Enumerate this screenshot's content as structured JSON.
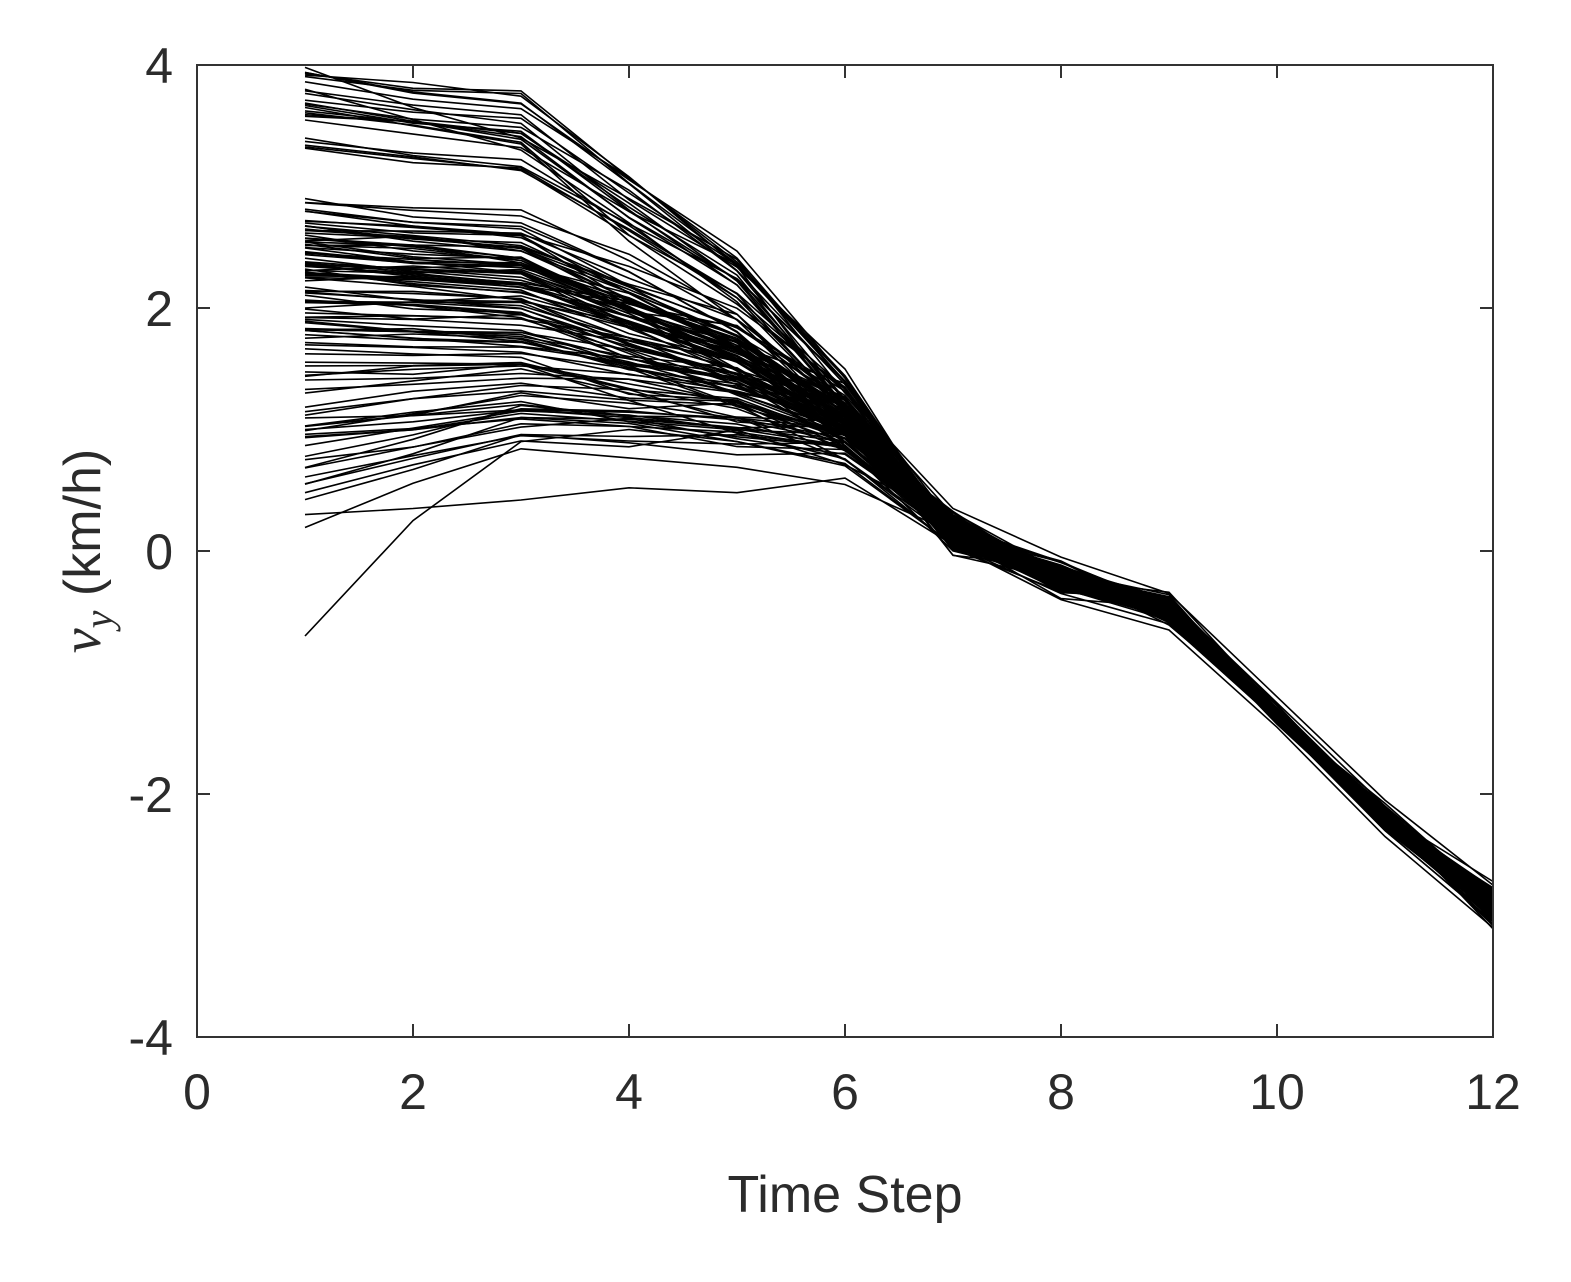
{
  "chart_data": {
    "type": "line",
    "xlabel": "Time Step",
    "ylabel_symbol": "v",
    "ylabel_subscript": "y",
    "ylabel_unit": " (km/h)",
    "xlim": [
      0,
      12
    ],
    "ylim": [
      -4,
      4
    ],
    "xticks": [
      0,
      2,
      4,
      6,
      8,
      10,
      12
    ],
    "yticks": [
      -4,
      -2,
      0,
      2,
      4
    ],
    "grid": false,
    "line_color": "#000000",
    "axis_color": "#333333",
    "x": [
      1,
      2,
      3,
      4,
      5,
      6,
      7,
      8,
      9,
      10,
      11,
      12
    ],
    "series_note_count": 140,
    "sample_series": [
      [
        3.98,
        3.65,
        3.4,
        2.9,
        2.4,
        1.3,
        0.35,
        -0.05,
        -0.35,
        -1.2,
        -2.05,
        -2.75
      ],
      [
        3.8,
        3.55,
        3.3,
        2.7,
        2.05,
        1.15,
        0.25,
        -0.15,
        -0.4,
        -1.25,
        -2.1,
        -2.85
      ],
      [
        3.65,
        3.5,
        3.35,
        2.55,
        1.9,
        1.05,
        0.2,
        -0.2,
        -0.45,
        -1.3,
        -2.15,
        -2.9
      ],
      [
        2.9,
        2.75,
        2.7,
        2.3,
        1.8,
        0.95,
        0.15,
        -0.2,
        -0.45,
        -1.3,
        -2.2,
        -2.95
      ],
      [
        2.45,
        2.4,
        2.35,
        2.0,
        1.6,
        0.9,
        0.15,
        -0.25,
        -0.5,
        -1.35,
        -2.2,
        -2.95
      ],
      [
        2.0,
        2.05,
        2.1,
        1.85,
        1.45,
        0.85,
        0.1,
        -0.25,
        -0.5,
        -1.35,
        -2.25,
        -3.0
      ],
      [
        1.3,
        1.4,
        1.5,
        1.3,
        1.1,
        0.75,
        0.1,
        -0.3,
        -0.55,
        -1.4,
        -2.25,
        -3.0
      ],
      [
        0.55,
        0.8,
        1.1,
        1.05,
        0.9,
        0.7,
        0.05,
        -0.3,
        -0.55,
        -1.4,
        -2.3,
        -3.05
      ],
      [
        0.3,
        0.35,
        0.42,
        0.52,
        0.48,
        0.6,
        0.05,
        -0.35,
        -0.6,
        -1.4,
        -2.3,
        -3.05
      ],
      [
        -0.7,
        0.25,
        0.9,
        1.0,
        0.9,
        0.72,
        0.05,
        -0.4,
        -0.65,
        -1.45,
        -2.35,
        -3.1
      ]
    ]
  }
}
